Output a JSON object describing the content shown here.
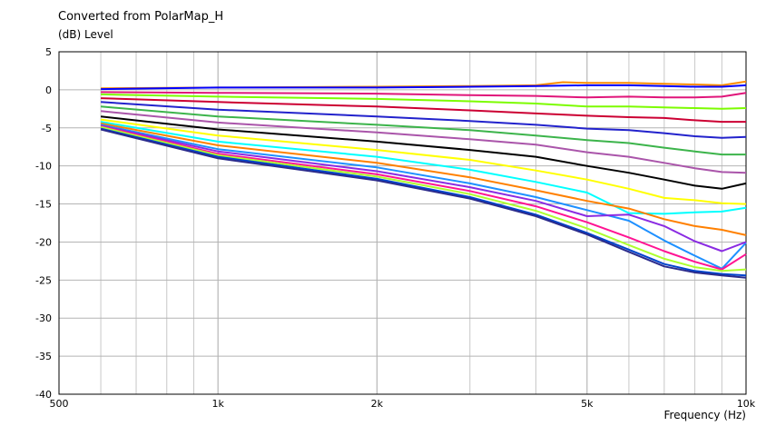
{
  "chart_data": {
    "type": "line",
    "title": "Converted from PolarMap_H",
    "ylabel": "(dB)  Level",
    "xlabel": "Frequency  (Hz)",
    "x_scale": "log",
    "xlim": [
      500,
      10000
    ],
    "ylim": [
      -40,
      5
    ],
    "grid": true,
    "legend": "none",
    "x_ticks": [
      {
        "value": 500,
        "label": "500"
      },
      {
        "value": 1000,
        "label": "1k"
      },
      {
        "value": 2000,
        "label": "2k"
      },
      {
        "value": 5000,
        "label": "5k"
      },
      {
        "value": 10000,
        "label": "10k"
      }
    ],
    "x_minor_grid": [
      600,
      700,
      800,
      900,
      3000,
      4000,
      6000,
      7000,
      8000,
      9000
    ],
    "y_ticks": [
      {
        "value": 5,
        "label": "5"
      },
      {
        "value": 0,
        "label": "0"
      },
      {
        "value": -5,
        "label": "-5"
      },
      {
        "value": -10,
        "label": "-10"
      },
      {
        "value": -15,
        "label": "-15"
      },
      {
        "value": -20,
        "label": "-20"
      },
      {
        "value": -25,
        "label": "-25"
      },
      {
        "value": -30,
        "label": "-30"
      },
      {
        "value": -35,
        "label": "-35"
      },
      {
        "value": -40,
        "label": "-40"
      }
    ],
    "series": [
      {
        "color": "#ff8c00",
        "points": [
          [
            600,
            0.2
          ],
          [
            1000,
            0.3
          ],
          [
            2000,
            0.4
          ],
          [
            3000,
            0.5
          ],
          [
            4000,
            0.6
          ],
          [
            4500,
            1.0
          ],
          [
            5000,
            0.9
          ],
          [
            6000,
            0.9
          ],
          [
            7000,
            0.8
          ],
          [
            8000,
            0.7
          ],
          [
            9000,
            0.6
          ],
          [
            10000,
            1.1
          ]
        ]
      },
      {
        "color": "#0000ff",
        "points": [
          [
            600,
            0.1
          ],
          [
            1000,
            0.3
          ],
          [
            2000,
            0.3
          ],
          [
            3000,
            0.4
          ],
          [
            4000,
            0.5
          ],
          [
            5000,
            0.6
          ],
          [
            6000,
            0.6
          ],
          [
            7000,
            0.5
          ],
          [
            8000,
            0.4
          ],
          [
            9000,
            0.4
          ],
          [
            10000,
            0.6
          ]
        ]
      },
      {
        "color": "#e0157a",
        "points": [
          [
            600,
            -0.3
          ],
          [
            1000,
            -0.4
          ],
          [
            2000,
            -0.5
          ],
          [
            3000,
            -0.7
          ],
          [
            4000,
            -0.8
          ],
          [
            5000,
            -1.0
          ],
          [
            6000,
            -0.9
          ],
          [
            7000,
            -1.0
          ],
          [
            8000,
            -1.0
          ],
          [
            9000,
            -0.9
          ],
          [
            10000,
            -0.4
          ]
        ]
      },
      {
        "color": "#7cfc00",
        "points": [
          [
            600,
            -0.6
          ],
          [
            1000,
            -0.9
          ],
          [
            2000,
            -1.2
          ],
          [
            3000,
            -1.5
          ],
          [
            4000,
            -1.8
          ],
          [
            5000,
            -2.2
          ],
          [
            6000,
            -2.2
          ],
          [
            7000,
            -2.3
          ],
          [
            8000,
            -2.4
          ],
          [
            9000,
            -2.5
          ],
          [
            10000,
            -2.4
          ]
        ]
      },
      {
        "color": "#cc0033",
        "points": [
          [
            600,
            -1.1
          ],
          [
            1000,
            -1.6
          ],
          [
            2000,
            -2.2
          ],
          [
            3000,
            -2.7
          ],
          [
            4000,
            -3.1
          ],
          [
            5000,
            -3.4
          ],
          [
            6000,
            -3.6
          ],
          [
            7000,
            -3.7
          ],
          [
            8000,
            -4.0
          ],
          [
            9000,
            -4.2
          ],
          [
            10000,
            -4.2
          ]
        ]
      },
      {
        "color": "#2222cc",
        "points": [
          [
            600,
            -1.6
          ],
          [
            1000,
            -2.6
          ],
          [
            2000,
            -3.5
          ],
          [
            3000,
            -4.1
          ],
          [
            4000,
            -4.6
          ],
          [
            5000,
            -5.1
          ],
          [
            6000,
            -5.3
          ],
          [
            7000,
            -5.7
          ],
          [
            8000,
            -6.1
          ],
          [
            9000,
            -6.3
          ],
          [
            10000,
            -6.2
          ]
        ]
      },
      {
        "color": "#3cb44b",
        "points": [
          [
            600,
            -2.2
          ],
          [
            1000,
            -3.5
          ],
          [
            2000,
            -4.6
          ],
          [
            3000,
            -5.3
          ],
          [
            4000,
            -6.0
          ],
          [
            5000,
            -6.6
          ],
          [
            6000,
            -7.0
          ],
          [
            7000,
            -7.6
          ],
          [
            8000,
            -8.1
          ],
          [
            9000,
            -8.5
          ],
          [
            10000,
            -8.5
          ]
        ]
      },
      {
        "color": "#aa55aa",
        "points": [
          [
            600,
            -2.8
          ],
          [
            1000,
            -4.3
          ],
          [
            2000,
            -5.6
          ],
          [
            3000,
            -6.5
          ],
          [
            4000,
            -7.2
          ],
          [
            5000,
            -8.2
          ],
          [
            6000,
            -8.8
          ],
          [
            7000,
            -9.6
          ],
          [
            8000,
            -10.3
          ],
          [
            9000,
            -10.8
          ],
          [
            10000,
            -10.9
          ]
        ]
      },
      {
        "color": "#000000",
        "points": [
          [
            600,
            -3.5
          ],
          [
            1000,
            -5.2
          ],
          [
            2000,
            -6.8
          ],
          [
            3000,
            -7.9
          ],
          [
            4000,
            -8.8
          ],
          [
            5000,
            -10.0
          ],
          [
            6000,
            -10.9
          ],
          [
            7000,
            -11.8
          ],
          [
            8000,
            -12.6
          ],
          [
            9000,
            -13.0
          ],
          [
            10000,
            -12.3
          ]
        ]
      },
      {
        "color": "#ffff00",
        "points": [
          [
            600,
            -3.9
          ],
          [
            1000,
            -6.0
          ],
          [
            2000,
            -7.9
          ],
          [
            3000,
            -9.2
          ],
          [
            4000,
            -10.6
          ],
          [
            5000,
            -11.8
          ],
          [
            6000,
            -13.0
          ],
          [
            7000,
            -14.2
          ],
          [
            8000,
            -14.5
          ],
          [
            9000,
            -14.9
          ],
          [
            10000,
            -15.0
          ]
        ]
      },
      {
        "color": "#00ffff",
        "points": [
          [
            600,
            -4.2
          ],
          [
            1000,
            -6.8
          ],
          [
            2000,
            -8.8
          ],
          [
            3000,
            -10.5
          ],
          [
            4000,
            -12.1
          ],
          [
            5000,
            -13.5
          ],
          [
            6000,
            -16.2
          ],
          [
            7000,
            -16.3
          ],
          [
            8000,
            -16.1
          ],
          [
            9000,
            -16.0
          ],
          [
            10000,
            -15.5
          ]
        ]
      },
      {
        "color": "#ff8000",
        "points": [
          [
            600,
            -4.4
          ],
          [
            1000,
            -7.3
          ],
          [
            2000,
            -9.6
          ],
          [
            3000,
            -11.5
          ],
          [
            4000,
            -13.2
          ],
          [
            5000,
            -14.6
          ],
          [
            6000,
            -15.6
          ],
          [
            7000,
            -17.0
          ],
          [
            8000,
            -17.9
          ],
          [
            9000,
            -18.4
          ],
          [
            10000,
            -19.1
          ]
        ]
      },
      {
        "color": "#1e90ff",
        "points": [
          [
            600,
            -4.6
          ],
          [
            1000,
            -7.8
          ],
          [
            2000,
            -10.2
          ],
          [
            3000,
            -12.3
          ],
          [
            4000,
            -14.1
          ],
          [
            5000,
            -15.8
          ],
          [
            6000,
            -17.2
          ],
          [
            7000,
            -19.8
          ],
          [
            8000,
            -21.8
          ],
          [
            9000,
            -23.5
          ],
          [
            10000,
            -20.1
          ]
        ]
      },
      {
        "color": "#8a2be2",
        "points": [
          [
            600,
            -4.7
          ],
          [
            1000,
            -8.1
          ],
          [
            2000,
            -10.7
          ],
          [
            3000,
            -12.8
          ],
          [
            4000,
            -14.6
          ],
          [
            5000,
            -16.6
          ],
          [
            6000,
            -16.4
          ],
          [
            7000,
            -17.9
          ],
          [
            8000,
            -19.9
          ],
          [
            9000,
            -21.2
          ],
          [
            10000,
            -20.0
          ]
        ]
      },
      {
        "color": "#ff1493",
        "points": [
          [
            600,
            -4.8
          ],
          [
            1000,
            -8.4
          ],
          [
            2000,
            -11.1
          ],
          [
            3000,
            -13.3
          ],
          [
            4000,
            -15.3
          ],
          [
            5000,
            -17.4
          ],
          [
            6000,
            -19.4
          ],
          [
            7000,
            -21.2
          ],
          [
            8000,
            -22.6
          ],
          [
            9000,
            -23.6
          ],
          [
            10000,
            -21.6
          ]
        ]
      },
      {
        "color": "#adff2f",
        "points": [
          [
            600,
            -4.9
          ],
          [
            1000,
            -8.6
          ],
          [
            2000,
            -11.4
          ],
          [
            3000,
            -13.7
          ],
          [
            4000,
            -15.9
          ],
          [
            5000,
            -18.2
          ],
          [
            6000,
            -20.4
          ],
          [
            7000,
            -22.2
          ],
          [
            8000,
            -23.3
          ],
          [
            9000,
            -23.8
          ],
          [
            10000,
            -23.6
          ]
        ]
      },
      {
        "color": "#0044cc",
        "points": [
          [
            600,
            -5.1
          ],
          [
            1000,
            -8.8
          ],
          [
            2000,
            -11.7
          ],
          [
            3000,
            -14.1
          ],
          [
            4000,
            -16.4
          ],
          [
            5000,
            -18.8
          ],
          [
            6000,
            -21.0
          ],
          [
            7000,
            -22.9
          ],
          [
            8000,
            -23.8
          ],
          [
            9000,
            -24.2
          ],
          [
            10000,
            -24.4
          ]
        ]
      },
      {
        "color": "#2b2b8c",
        "points": [
          [
            600,
            -5.2
          ],
          [
            1000,
            -9.0
          ],
          [
            2000,
            -11.9
          ],
          [
            3000,
            -14.3
          ],
          [
            4000,
            -16.6
          ],
          [
            5000,
            -19.0
          ],
          [
            6000,
            -21.3
          ],
          [
            7000,
            -23.2
          ],
          [
            8000,
            -24.0
          ],
          [
            9000,
            -24.4
          ],
          [
            10000,
            -24.7
          ]
        ]
      }
    ]
  }
}
